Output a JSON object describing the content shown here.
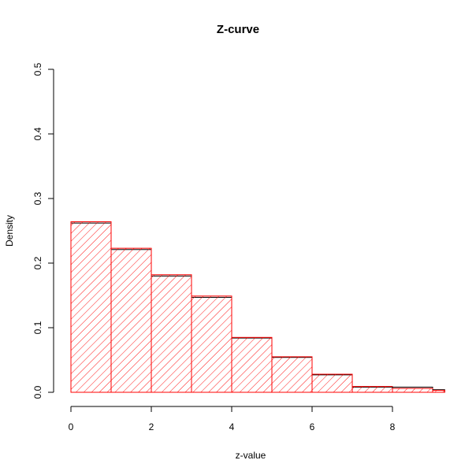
{
  "chart_data": {
    "type": "bar",
    "title": "Z-curve",
    "xlabel": "z-value",
    "ylabel": "Density",
    "xlim": [
      0,
      9.3
    ],
    "ylim": [
      0,
      0.5
    ],
    "x_ticks": [
      "0",
      "2",
      "4",
      "6",
      "8"
    ],
    "y_ticks": [
      "0.0",
      "0.1",
      "0.2",
      "0.3",
      "0.4",
      "0.5"
    ],
    "grid": false,
    "legend": "none",
    "bins": [
      {
        "from": 0,
        "to": 1,
        "observed": 0.262,
        "fitted": 0.264
      },
      {
        "from": 1,
        "to": 2,
        "observed": 0.221,
        "fitted": 0.223
      },
      {
        "from": 2,
        "to": 3,
        "observed": 0.18,
        "fitted": 0.182
      },
      {
        "from": 3,
        "to": 4,
        "observed": 0.147,
        "fitted": 0.149
      },
      {
        "from": 4,
        "to": 5,
        "observed": 0.084,
        "fitted": 0.085
      },
      {
        "from": 5,
        "to": 6,
        "observed": 0.054,
        "fitted": 0.055
      },
      {
        "from": 6,
        "to": 7,
        "observed": 0.027,
        "fitted": 0.028
      },
      {
        "from": 7,
        "to": 8,
        "observed": 0.008,
        "fitted": 0.009
      },
      {
        "from": 8,
        "to": 9,
        "observed": 0.008,
        "fitted": 0.006
      },
      {
        "from": 9,
        "to": 9.3,
        "observed": 0.004,
        "fitted": 0.003
      }
    ],
    "colors": {
      "observed": "#000000",
      "fitted": "#ff0000"
    }
  }
}
